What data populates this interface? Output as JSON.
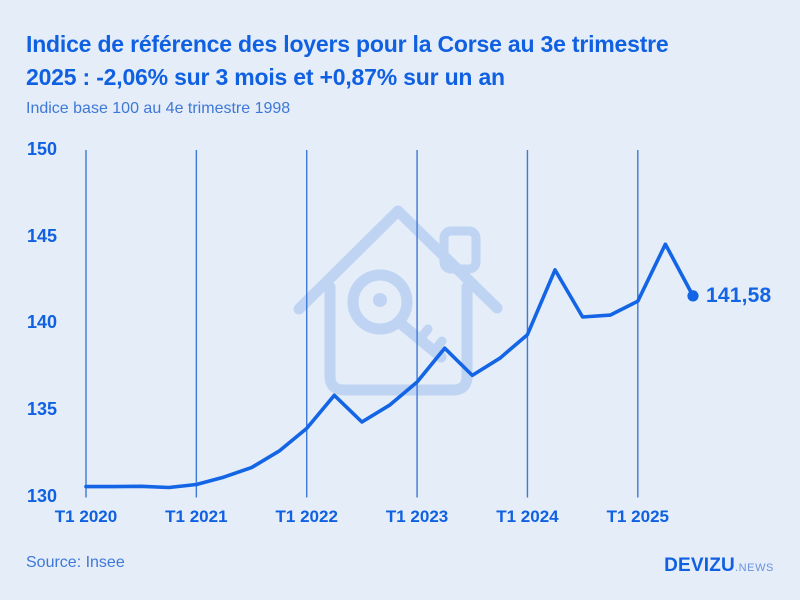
{
  "colors": {
    "bg": "#e4edf8",
    "accent": "#1060e2",
    "line": "#1365e6",
    "grid": "#3d79d6",
    "watermark": "#bfd4f3",
    "soft": "#3e78d8",
    "logo-suffix": "#6a93e2"
  },
  "header": {
    "title_line1": "Indice de référence des loyers pour la Corse au 3e trimestre",
    "title_line2": "2025 : -2,06% sur 3 mois et +0,87% sur un an",
    "subtitle": "Indice base 100 au 4e trimestre 1998"
  },
  "footer": {
    "source": "Source: Insee",
    "logo_main": "DEVIZU",
    "logo_suffix": ".NEWS"
  },
  "chart_data": {
    "type": "line",
    "title": "Indice de référence des loyers pour la Corse au 3e trimestre 2025 : -2,06% sur 3 mois et +0,87% sur un an",
    "subtitle": "Indice base 100 au 4e trimestre 1998",
    "source": "Source: Insee",
    "categories": [
      "T1 2020",
      "T2 2020",
      "T3 2020",
      "T4 2020",
      "T1 2021",
      "T2 2021",
      "T3 2021",
      "T4 2021",
      "T1 2022",
      "T2 2022",
      "T3 2022",
      "T4 2022",
      "T1 2023",
      "T2 2023",
      "T3 2023",
      "T4 2023",
      "T1 2024",
      "T2 2024",
      "T3 2024",
      "T4 2024",
      "T1 2025",
      "T2 2025",
      "T3 2025"
    ],
    "values": [
      130.57,
      130.57,
      130.59,
      130.52,
      130.69,
      131.12,
      131.67,
      132.62,
      133.93,
      135.84,
      134.3,
      135.27,
      136.61,
      138.56,
      136.99,
      137.98,
      139.34,
      143.08,
      140.36,
      140.47,
      141.27,
      144.56,
      141.58
    ],
    "ylim": [
      130,
      150
    ],
    "yticks": [
      150,
      145,
      140,
      135,
      130
    ],
    "x_tick_indices": [
      0,
      4,
      8,
      12,
      16,
      20
    ],
    "x_tick_labels": [
      "T1 2020",
      "T1 2021",
      "T1 2022",
      "T1 2023",
      "T1 2024",
      "T1 2025"
    ],
    "grid": "vertical-only",
    "legend": "none",
    "end_label": "141,58",
    "end_value": 141.58
  }
}
